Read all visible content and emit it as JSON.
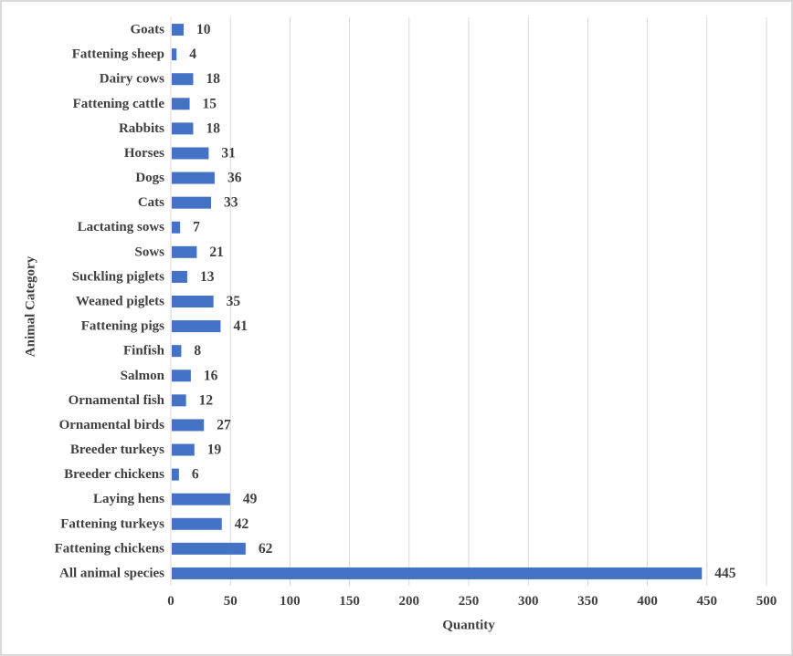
{
  "chart_data": {
    "type": "bar",
    "orientation": "horizontal",
    "title": "",
    "xlabel": "Quantity",
    "ylabel": "Animal Category",
    "categories": [
      "Goats",
      "Fattening sheep",
      "Dairy cows",
      "Fattening cattle",
      "Rabbits",
      "Horses",
      "Dogs",
      "Cats",
      "Lactating sows",
      "Sows",
      "Suckling piglets",
      "Weaned piglets",
      "Fattening pigs",
      "Finfish",
      "Salmon",
      "Ornamental fish",
      "Ornamental birds",
      "Breeder turkeys",
      "Breeder chickens",
      "Laying hens",
      "Fattening turkeys",
      "Fattening chickens",
      "All animal species"
    ],
    "values": [
      10,
      4,
      18,
      15,
      18,
      31,
      36,
      33,
      7,
      21,
      13,
      35,
      41,
      8,
      16,
      12,
      27,
      19,
      6,
      49,
      42,
      62,
      445
    ],
    "data_labels": [
      10,
      4,
      18,
      15,
      18,
      31,
      36,
      33,
      7,
      21,
      13,
      35,
      41,
      8,
      16,
      12,
      27,
      19,
      6,
      49,
      42,
      62,
      445
    ],
    "xlim": [
      0,
      500
    ],
    "xticks": [
      0,
      50,
      100,
      150,
      200,
      250,
      300,
      350,
      400,
      450,
      500
    ],
    "grid": true,
    "legend": false,
    "colors": {
      "bar": "#4472C4",
      "gridline": "#D9D9D9",
      "text": "#404040"
    }
  }
}
